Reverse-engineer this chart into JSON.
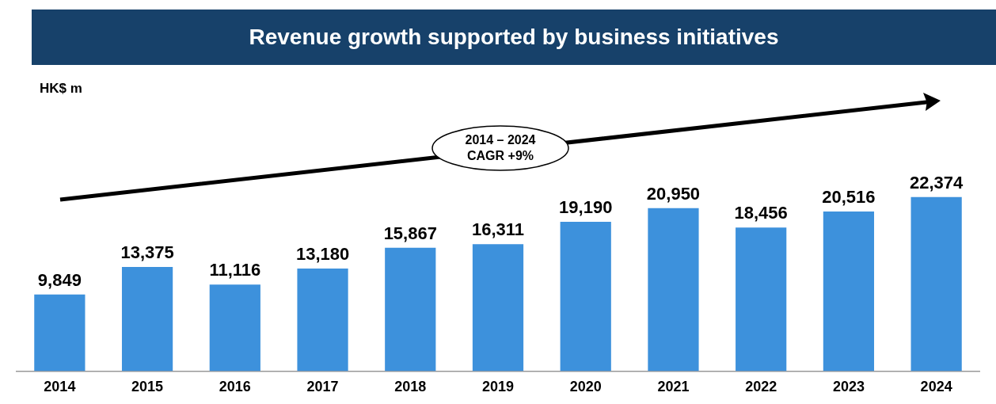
{
  "chart_data": {
    "type": "bar",
    "title": "Revenue growth supported by business initiatives",
    "categories": [
      "2014",
      "2015",
      "2016",
      "2017",
      "2018",
      "2019",
      "2020",
      "2021",
      "2022",
      "2023",
      "2024"
    ],
    "values": [
      9849,
      13375,
      11116,
      13180,
      15867,
      16311,
      19190,
      20950,
      18456,
      20516,
      22374
    ],
    "value_labels": [
      "9,849",
      "13,375",
      "11,116",
      "13,180",
      "15,867",
      "16,311",
      "19,190",
      "20,950",
      "18,456",
      "20,516",
      "22,374"
    ],
    "color": "#3d91dc",
    "grid": false,
    "legend": false,
    "annotations": [
      "HK$ m",
      "2014 – 2024 CAGR +9%"
    ]
  }
}
